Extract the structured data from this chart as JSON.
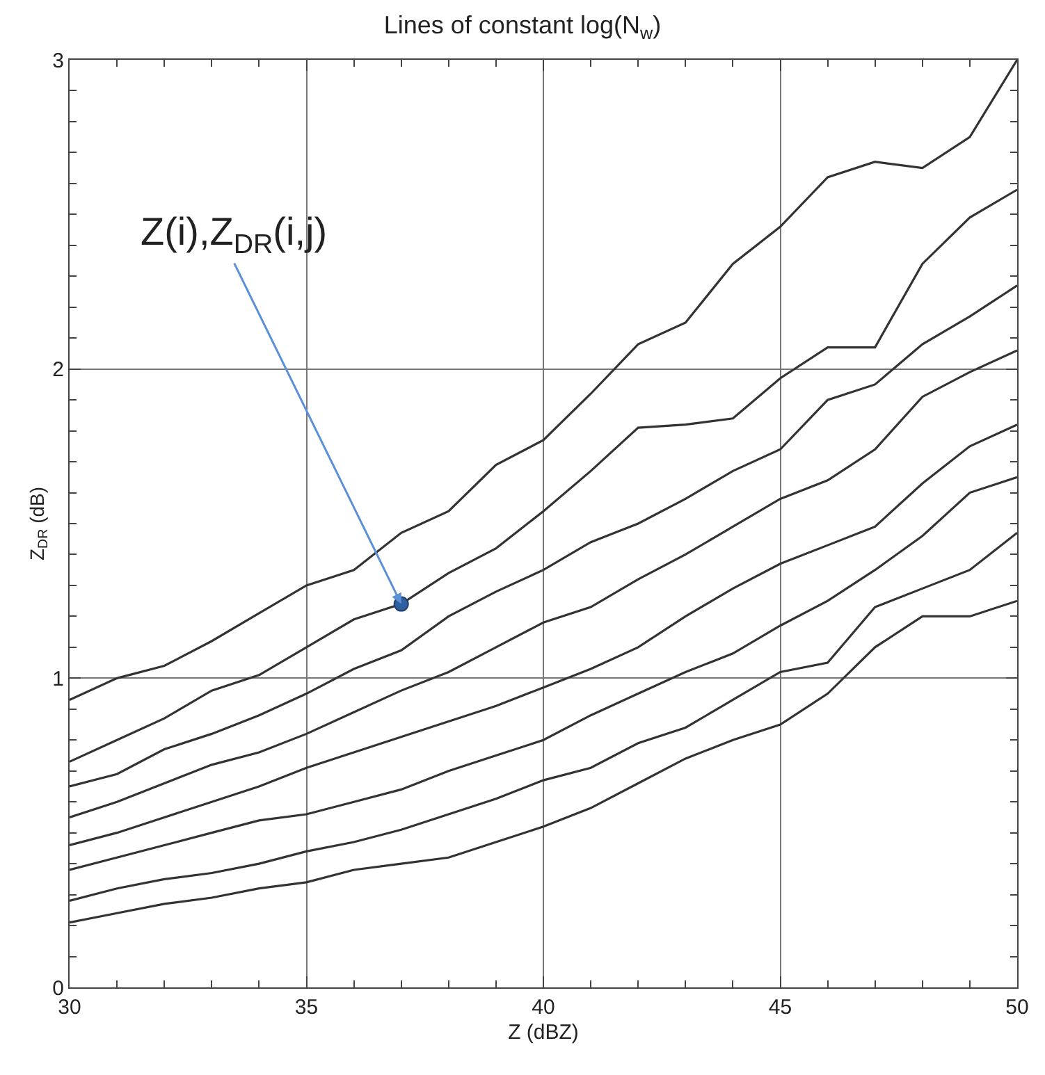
{
  "chart_data": {
    "type": "line",
    "title": "Lines of constant log(N$_{w}$)",
    "xlabel": "Z (dBZ)",
    "ylabel": "Z$_{DR}$ (dB)",
    "x": [
      30,
      31,
      32,
      33,
      34,
      35,
      36,
      37,
      38,
      39,
      40,
      41,
      42,
      43,
      44,
      45,
      46,
      47,
      48,
      49,
      50
    ],
    "series": [
      {
        "color": "#333333",
        "values": [
          0.93,
          1.0,
          1.04,
          1.12,
          1.21,
          1.3,
          1.35,
          1.47,
          1.54,
          1.69,
          1.77,
          1.92,
          2.08,
          2.15,
          2.34,
          2.46,
          2.62,
          2.67,
          2.65,
          2.75,
          3.0
        ]
      },
      {
        "color": "#333333",
        "values": [
          0.73,
          0.8,
          0.87,
          0.96,
          1.01,
          1.1,
          1.19,
          1.24,
          1.34,
          1.42,
          1.54,
          1.67,
          1.81,
          1.82,
          1.84,
          1.97,
          2.07,
          2.07,
          2.34,
          2.49,
          2.58
        ]
      },
      {
        "color": "#333333",
        "values": [
          0.65,
          0.69,
          0.77,
          0.82,
          0.88,
          0.95,
          1.03,
          1.09,
          1.2,
          1.28,
          1.35,
          1.44,
          1.5,
          1.58,
          1.67,
          1.74,
          1.9,
          1.95,
          2.08,
          2.17,
          2.27
        ]
      },
      {
        "color": "#333333",
        "values": [
          0.55,
          0.6,
          0.66,
          0.72,
          0.76,
          0.82,
          0.89,
          0.96,
          1.02,
          1.1,
          1.18,
          1.23,
          1.32,
          1.4,
          1.49,
          1.58,
          1.64,
          1.74,
          1.91,
          1.99,
          2.06
        ]
      },
      {
        "color": "#333333",
        "values": [
          0.46,
          0.5,
          0.55,
          0.6,
          0.65,
          0.71,
          0.76,
          0.81,
          0.86,
          0.91,
          0.97,
          1.03,
          1.1,
          1.2,
          1.29,
          1.37,
          1.43,
          1.49,
          1.63,
          1.75,
          1.82
        ]
      },
      {
        "color": "#333333",
        "values": [
          0.38,
          0.42,
          0.46,
          0.5,
          0.54,
          0.56,
          0.6,
          0.64,
          0.7,
          0.75,
          0.8,
          0.88,
          0.95,
          1.02,
          1.08,
          1.17,
          1.25,
          1.35,
          1.46,
          1.6,
          1.65
        ]
      },
      {
        "color": "#333333",
        "values": [
          0.28,
          0.32,
          0.35,
          0.37,
          0.4,
          0.44,
          0.47,
          0.51,
          0.56,
          0.61,
          0.67,
          0.71,
          0.79,
          0.84,
          0.93,
          1.02,
          1.05,
          1.23,
          1.29,
          1.35,
          1.47
        ]
      },
      {
        "color": "#333333",
        "values": [
          0.21,
          0.24,
          0.27,
          0.29,
          0.32,
          0.34,
          0.38,
          0.4,
          0.42,
          0.47,
          0.52,
          0.58,
          0.66,
          0.74,
          0.8,
          0.85,
          0.95,
          1.1,
          1.2,
          1.2,
          1.25
        ]
      },
      {
        "type": "scatter",
        "marker": "circle",
        "color": "#2e5f9e",
        "x": [
          37
        ],
        "values": [
          1.24
        ]
      }
    ],
    "annotations": [
      {
        "text": "Z(i),Z$_{DR}$(i,j)",
        "x": 37,
        "y": 1.24
      }
    ],
    "xlim": [
      30,
      50
    ],
    "xticks": [
      30,
      35,
      40,
      45,
      50
    ],
    "ylim": [
      0,
      3
    ],
    "yticks": [
      0,
      1,
      2,
      3
    ],
    "grid": true,
    "line_style": "solid"
  }
}
